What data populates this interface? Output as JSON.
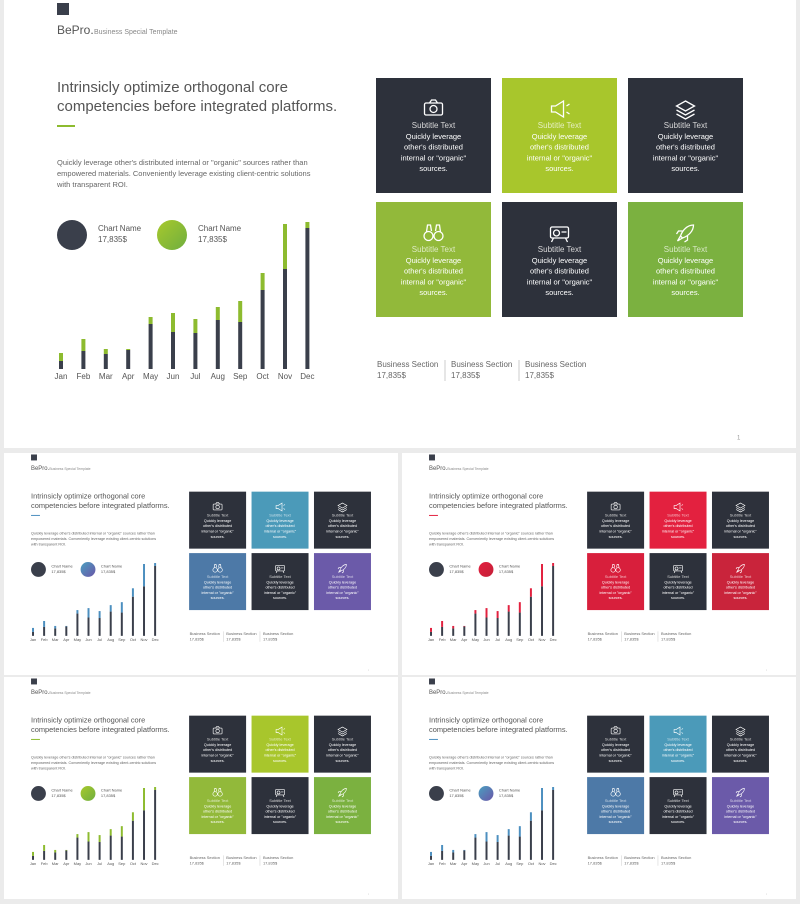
{
  "brand": "BePro.",
  "brand_subtitle": "Business Special Template",
  "title_lines": [
    "Intrinsicly optimize orthogonal core",
    "competencies before integrated platforms."
  ],
  "body_lines": [
    "Quickly leverage other's distributed internal or \"organic\" sources rather than",
    "empowered materials. Conveniently leverage existing client-centric solutions",
    "with transparent ROI."
  ],
  "chart_data": {
    "type": "bar",
    "stacked": true,
    "categories": [
      "Jan",
      "Feb",
      "Mar",
      "Apr",
      "May",
      "Jun",
      "Jul",
      "Aug",
      "Sep",
      "Oct",
      "Nov",
      "Dec"
    ],
    "series": [
      {
        "name": "Chart Name",
        "legend_value": "17,835$",
        "color": "#3a3f4b",
        "values": [
          8,
          18,
          15,
          19,
          45,
          37,
          36,
          49,
          47,
          79,
          100,
          141
        ]
      },
      {
        "name": "Chart Name",
        "legend_value": "17,835$",
        "values": [
          8,
          12,
          5,
          1,
          7,
          19,
          14,
          13,
          21,
          17,
          45,
          6
        ]
      }
    ]
  },
  "tile_text": {
    "subtitle": "Subtitle Text",
    "lines": [
      "Quickly leverage",
      "other's distributed",
      "internal or \"organic\"",
      "sources."
    ]
  },
  "business_sections": [
    {
      "label": "Business Section",
      "value": "17,835$"
    },
    {
      "label": "Business Section",
      "value": "17,835$"
    },
    {
      "label": "Business Section",
      "value": "17,835$"
    }
  ],
  "page_number": "1",
  "slides": [
    {
      "accent": "#8dbb2f",
      "gradient": [
        "#a8c92c",
        "#6fae3f"
      ],
      "tiles": [
        "#2d313b",
        "#a8c62c",
        "#2d313b",
        "#92b93a",
        "#2d313b",
        "#7bb140"
      ]
    },
    {
      "accent": "#4c8fbf",
      "gradient": [
        "#4aa0c0",
        "#6a55a8"
      ],
      "tiles": [
        "#2d313b",
        "#4b9ab9",
        "#2d313b",
        "#4d79a7",
        "#2d313b",
        "#6b5aa9"
      ]
    },
    {
      "accent": "#e2213f",
      "gradient": [
        "#e2213f",
        "#c41f38"
      ],
      "tiles": [
        "#2d313b",
        "#e3213f",
        "#2d313b",
        "#d81f3c",
        "#2d313b",
        "#c9243b"
      ]
    },
    {
      "accent": "#8dbb2f",
      "gradient": [
        "#a8c92c",
        "#6fae3f"
      ],
      "tiles": [
        "#2d313b",
        "#a8c62c",
        "#2d313b",
        "#92b93a",
        "#2d313b",
        "#7bb140"
      ]
    },
    {
      "accent": "#4c8fbf",
      "gradient": [
        "#4aa0c0",
        "#6a55a8"
      ],
      "tiles": [
        "#2d313b",
        "#4b9ab9",
        "#2d313b",
        "#4d79a7",
        "#2d313b",
        "#6b5aa9"
      ]
    }
  ]
}
